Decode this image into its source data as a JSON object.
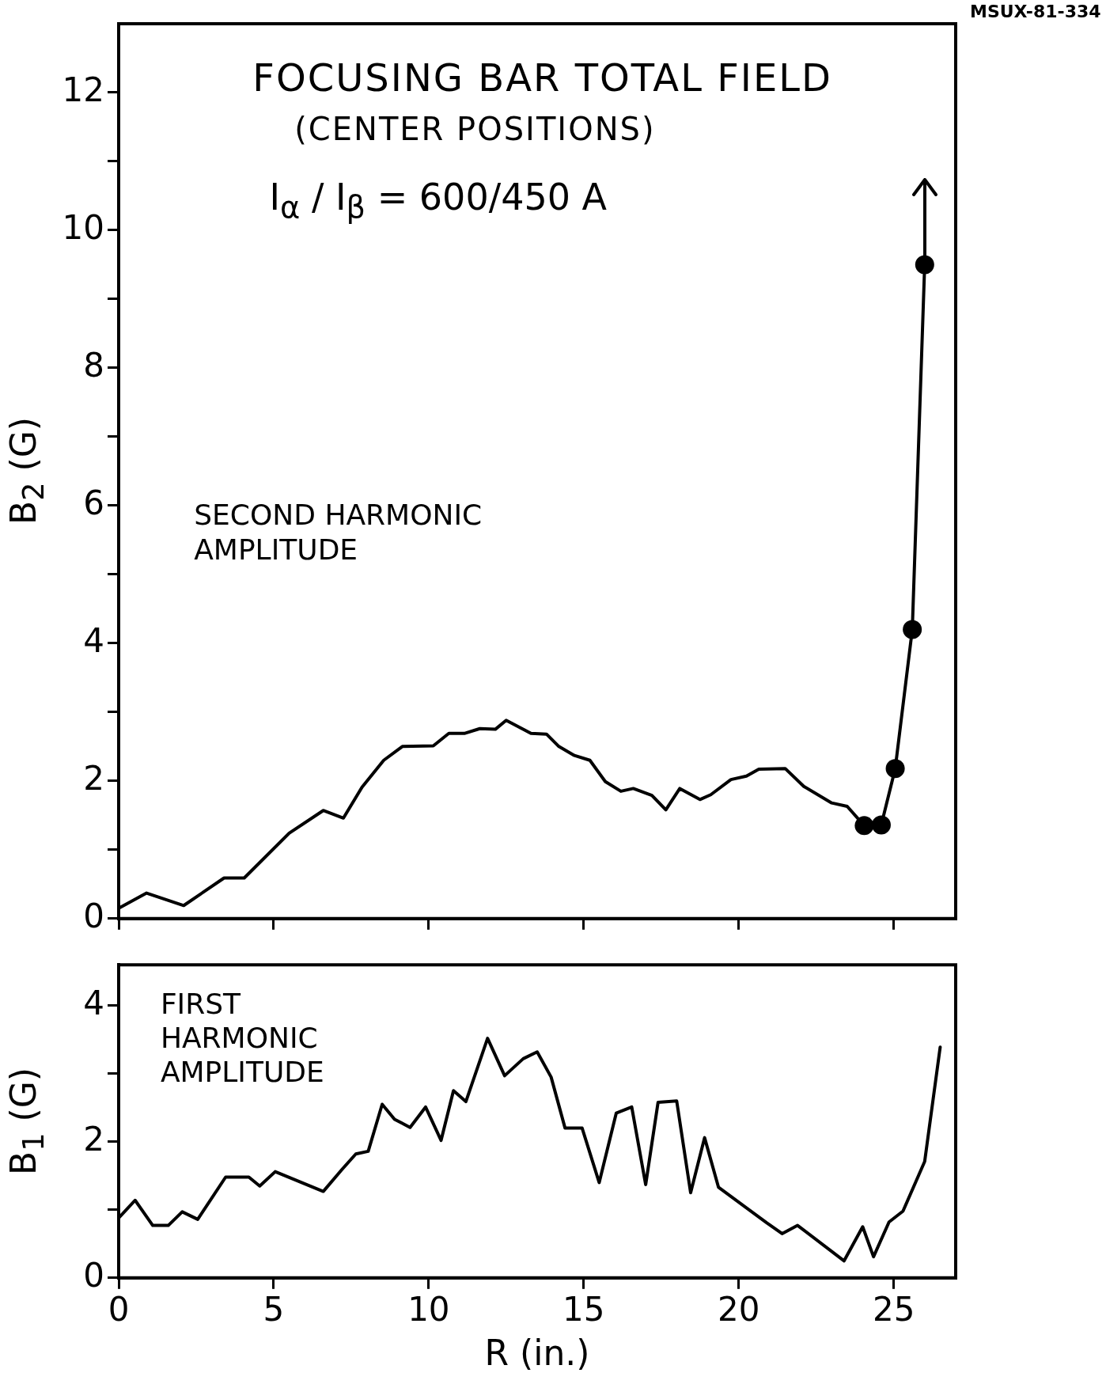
{
  "chart_data": [
    {
      "type": "line",
      "title": "FOCUSING BAR TOTAL FIELD",
      "subtitle": "(CENTER POSITIONS)",
      "ylabel": "B$_{2}$ (G)",
      "annotations": [
        "I$_{α}$ / I$_{β}$ = 600/450 A",
        "SECOND HARMONIC AMPLITUDE",
        "MSUX-81-334"
      ],
      "series": [
        {
          "color": "#000000",
          "marker": "none",
          "x": [
            0,
            0.9,
            2.1,
            3.4,
            4.05,
            5.5,
            6.6,
            7.25,
            7.85,
            8.55,
            9.15,
            10.15,
            10.65,
            11.15,
            11.65,
            12.15,
            12.5,
            13.3,
            13.8,
            14.2,
            14.7,
            15.2,
            15.7,
            16.2,
            16.6,
            17.2,
            17.65,
            18.1,
            18.75,
            19.1,
            19.75,
            20.25,
            20.65,
            21.5,
            22.1,
            23.0,
            23.5,
            24.05
          ],
          "values": [
            0.15,
            0.37,
            0.19,
            0.59,
            0.59,
            1.24,
            1.57,
            1.46,
            1.91,
            2.3,
            2.5,
            2.51,
            2.69,
            2.69,
            2.76,
            2.75,
            2.88,
            2.69,
            2.68,
            2.5,
            2.37,
            2.3,
            1.99,
            1.85,
            1.89,
            1.79,
            1.58,
            1.89,
            1.73,
            1.8,
            2.02,
            2.07,
            2.17,
            2.18,
            1.92,
            1.68,
            1.63,
            1.35
          ]
        },
        {
          "color": "#000000",
          "marker": "circle",
          "x": [
            24.05,
            24.6,
            25.05,
            25.6,
            26.0
          ],
          "values": [
            1.35,
            1.36,
            2.18,
            4.2,
            9.5
          ]
        }
      ],
      "xlim": [
        0,
        27
      ],
      "ylim": [
        0,
        13
      ],
      "xticks": [
        0,
        5,
        10,
        15,
        20,
        25
      ],
      "yticks": [
        0,
        {
          "value": 1,
          "label": null
        },
        2,
        {
          "value": 3,
          "label": null
        },
        4,
        {
          "value": 5,
          "label": null
        },
        6,
        {
          "value": 7,
          "label": null
        },
        8,
        {
          "value": 9,
          "label": null
        },
        10,
        {
          "value": 11,
          "label": null
        },
        12
      ],
      "tick_labels": "y"
    },
    {
      "type": "line",
      "xlabel": "R (in.)",
      "ylabel": "B$_{1}$ (G)",
      "annotations": [
        "FIRST HARMONIC AMPLITUDE"
      ],
      "series": [
        {
          "color": "#000000",
          "marker": "none",
          "x": [
            0,
            0.53,
            1.1,
            1.6,
            2.05,
            2.55,
            3.45,
            4.2,
            4.55,
            5.05,
            6.6,
            7.2,
            7.65,
            8.05,
            8.5,
            8.9,
            9.4,
            9.9,
            10.4,
            10.8,
            11.2,
            11.9,
            12.45,
            13.05,
            13.5,
            13.95,
            14.4,
            14.95,
            15.5,
            16.05,
            16.55,
            17.0,
            17.4,
            18.0,
            18.45,
            18.9,
            19.35,
            20.9,
            21.4,
            21.9,
            23.4,
            24.0,
            24.35,
            24.85,
            25.3,
            26.0,
            26.5
          ],
          "values": [
            0.88,
            1.14,
            0.77,
            0.77,
            0.97,
            0.86,
            1.48,
            1.48,
            1.35,
            1.56,
            1.27,
            1.59,
            1.82,
            1.86,
            2.55,
            2.33,
            2.21,
            2.51,
            2.02,
            2.75,
            2.59,
            3.52,
            2.97,
            3.22,
            3.32,
            2.95,
            2.2,
            2.2,
            1.4,
            2.42,
            2.51,
            1.37,
            2.58,
            2.6,
            1.25,
            2.06,
            1.33,
            0.81,
            0.65,
            0.77,
            0.25,
            0.75,
            0.31,
            0.82,
            0.98,
            1.71,
            3.39
          ]
        }
      ],
      "xlim": [
        0,
        27
      ],
      "ylim": [
        0,
        4.6
      ],
      "xticks": [
        0,
        5,
        10,
        15,
        20,
        25
      ],
      "yticks": [
        0,
        {
          "value": 1,
          "label": null
        },
        2,
        {
          "value": 3,
          "label": null
        },
        4
      ]
    }
  ]
}
